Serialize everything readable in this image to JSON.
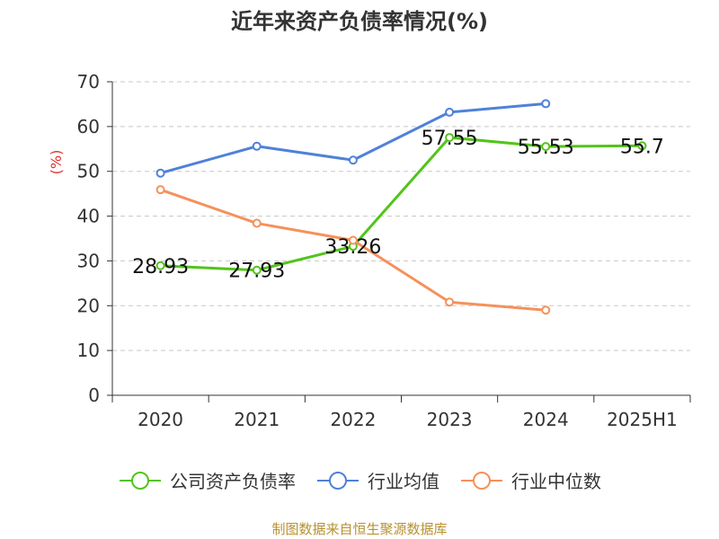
{
  "chart_data": {
    "type": "line",
    "title": "近年来资产负债率情况(%)",
    "ylabel": "(%)",
    "xlabel": "",
    "categories": [
      "2020",
      "2021",
      "2022",
      "2023",
      "2024",
      "2025H1"
    ],
    "ylim": [
      0,
      70
    ],
    "yticks": [
      0,
      10,
      20,
      30,
      40,
      50,
      60,
      70
    ],
    "grid": true,
    "legend_position": "bottom",
    "series": [
      {
        "name": "公司资产负债率",
        "color": "#52c41a",
        "values": [
          28.93,
          27.93,
          33.26,
          57.55,
          55.53,
          55.7
        ],
        "labels": [
          "28.93",
          "27.93",
          "33.26",
          "57.55",
          "55.53",
          "55.7"
        ]
      },
      {
        "name": "行业均值",
        "color": "#4f81d9",
        "values": [
          49.6,
          55.6,
          52.5,
          63.2,
          65.1,
          null
        ]
      },
      {
        "name": "行业中位数",
        "color": "#f5915a",
        "values": [
          45.9,
          38.4,
          34.6,
          20.8,
          19.0,
          null
        ]
      }
    ]
  },
  "source": "制图数据来自恒生聚源数据库"
}
